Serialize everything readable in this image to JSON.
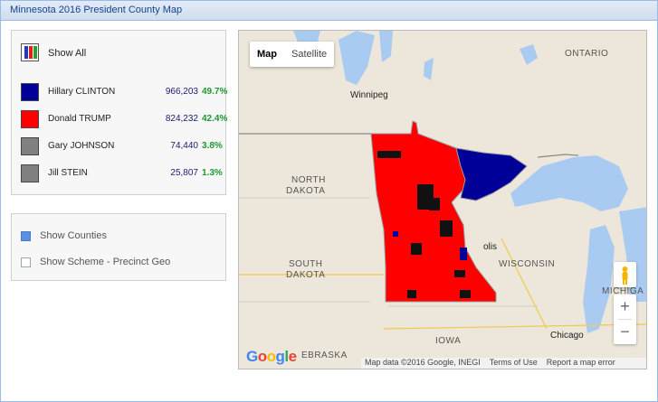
{
  "window": {
    "title": "Minnesota 2016 President  County Map"
  },
  "legend": {
    "show_all_label": "Show All",
    "candidates": [
      {
        "name": "Hillary CLINTON",
        "votes": "966,203",
        "pct": "49.7%",
        "color": "#000099"
      },
      {
        "name": "Donald TRUMP",
        "votes": "824,232",
        "pct": "42.4%",
        "color": "#ff0000"
      },
      {
        "name": "Gary JOHNSON",
        "votes": "74,440",
        "pct": "3.8%",
        "color": "#808080"
      },
      {
        "name": "Jill STEIN",
        "votes": "25,807",
        "pct": "1.3%",
        "color": "#808080"
      }
    ]
  },
  "options": {
    "show_counties_label": "Show Counties",
    "show_counties_checked": true,
    "show_scheme_label": "Show Scheme - Precinct Geo",
    "show_scheme_checked": false
  },
  "map": {
    "type_map": "Map",
    "type_satellite": "Satellite",
    "labels": {
      "ontario": "ONTARIO",
      "winnipeg": "Winnipeg",
      "north_dakota_1": "NORTH",
      "north_dakota_2": "DAKOTA",
      "south_dakota_1": "SOUTH",
      "south_dakota_2": "DAKOTA",
      "wisconsin": "WISCONSIN",
      "michigan": "MICHIGA",
      "iowa": "IOWA",
      "nebraska": "EBRASKA",
      "chicago": "Chicago",
      "minneapolis": "olis"
    },
    "zoom_in": "+",
    "zoom_out": "−",
    "google_logo": "Google",
    "attribution": {
      "data": "Map data ©2016 Google, INEGI",
      "terms": "Terms of Use",
      "report": "Report a map error"
    }
  }
}
